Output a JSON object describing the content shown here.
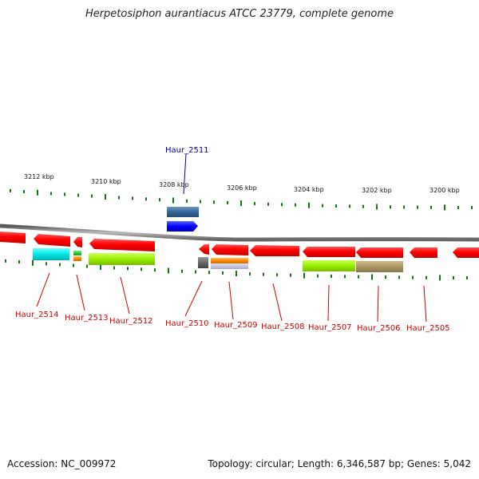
{
  "title": "Herpetosiphon aurantiacus ATCC 23779, complete genome",
  "footer": {
    "accession": "Accession: NC_009972",
    "summary": "Topology: circular; Length: 6,346,587 bp; Genes: 5,042"
  },
  "scale_labels": [
    "3212 kbp",
    "3210 kbp",
    "3208 kbp",
    "3206 kbp",
    "3204 kbp",
    "3202 kbp",
    "3200 kbp"
  ],
  "genes": [
    {
      "label": "Haur_2514",
      "color": "#cc0000",
      "strand": "-",
      "cog_color": "#00e5e5"
    },
    {
      "label": "Haur_2513",
      "color": "#cc0000",
      "strand": "-",
      "cog_color": "#33cc33"
    },
    {
      "label": "Haur_2512",
      "color": "#cc0000",
      "strand": "-",
      "cog_color": "#99ee00"
    },
    {
      "label": "Haur_2511",
      "color": "#000099",
      "strand": "+",
      "cog_color": "#336699"
    },
    {
      "label": "Haur_2510",
      "color": "#cc0000",
      "strand": "-",
      "cog_color": "#666666"
    },
    {
      "label": "Haur_2509",
      "color": "#cc0000",
      "strand": "-",
      "cog_color": "#ff8800"
    },
    {
      "label": "Haur_2508",
      "color": "#cc0000",
      "strand": "-",
      "cog_color": ""
    },
    {
      "label": "Haur_2507",
      "color": "#cc0000",
      "strand": "-",
      "cog_color": "#99ee00"
    },
    {
      "label": "Haur_2506",
      "color": "#cc0000",
      "strand": "-",
      "cog_color": "#aa9966"
    },
    {
      "label": "Haur_2505",
      "color": "#cc0000",
      "strand": "-",
      "cog_color": ""
    }
  ],
  "colors": {
    "backbone": "#777777",
    "tick": "#117711",
    "minus_strand_gene": "#ff0000",
    "plus_strand_gene": "#0000ff"
  }
}
